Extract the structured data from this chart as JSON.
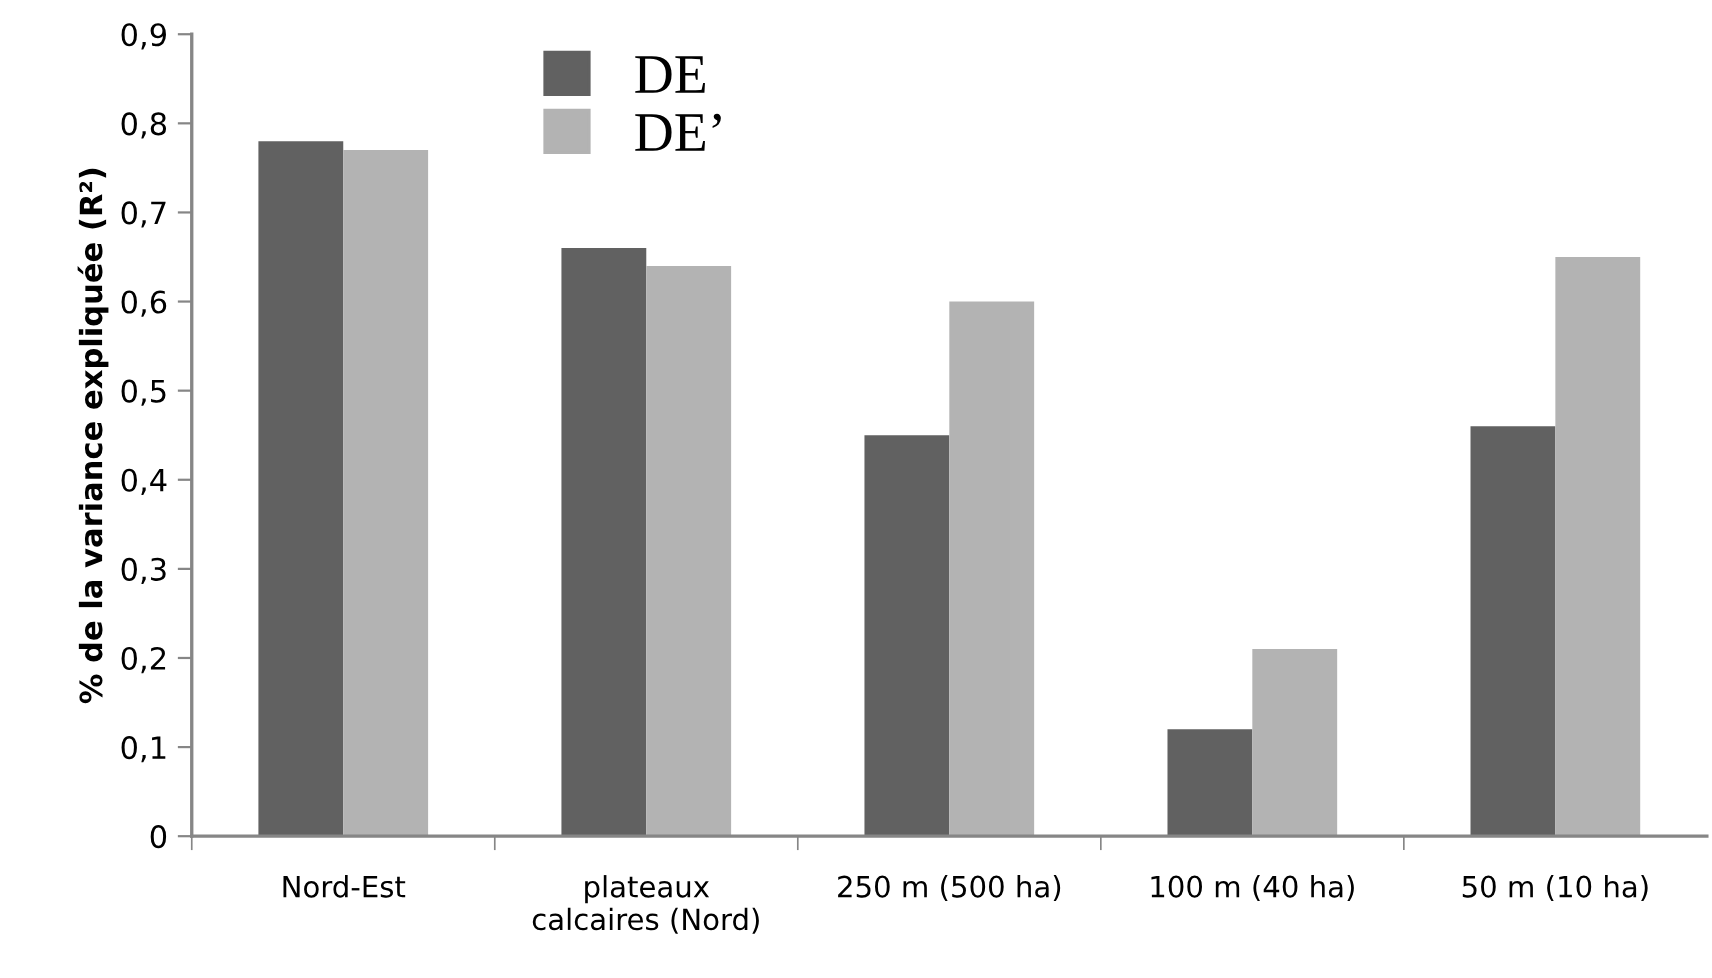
{
  "chart_data": {
    "type": "bar",
    "ylabel": "% de la variance expliquée (R²)",
    "categories": [
      "Nord-Est",
      "plateaux\ncalcaires (Nord)",
      "250 m (500 ha)",
      "100 m (40 ha)",
      "50 m (10 ha)"
    ],
    "series": [
      {
        "name": "DE",
        "color": "#616161",
        "values": [
          0.78,
          0.66,
          0.45,
          0.12,
          0.46
        ]
      },
      {
        "name": "DE’",
        "color": "#b3b3b3",
        "values": [
          0.77,
          0.64,
          0.6,
          0.21,
          0.65
        ]
      }
    ],
    "ylim": [
      0,
      0.9
    ],
    "yticks": [
      {
        "value": 0,
        "label": "0"
      },
      {
        "value": 0.1,
        "label": "0,1"
      },
      {
        "value": 0.2,
        "label": "0,2"
      },
      {
        "value": 0.3,
        "label": "0,3"
      },
      {
        "value": 0.4,
        "label": "0,4"
      },
      {
        "value": 0.5,
        "label": "0,5"
      },
      {
        "value": 0.6,
        "label": "0,6"
      },
      {
        "value": 0.7,
        "label": "0,7"
      },
      {
        "value": 0.8,
        "label": "0,8"
      },
      {
        "value": 0.9,
        "label": "0,9"
      }
    ],
    "grid": false,
    "legend": "top left"
  }
}
